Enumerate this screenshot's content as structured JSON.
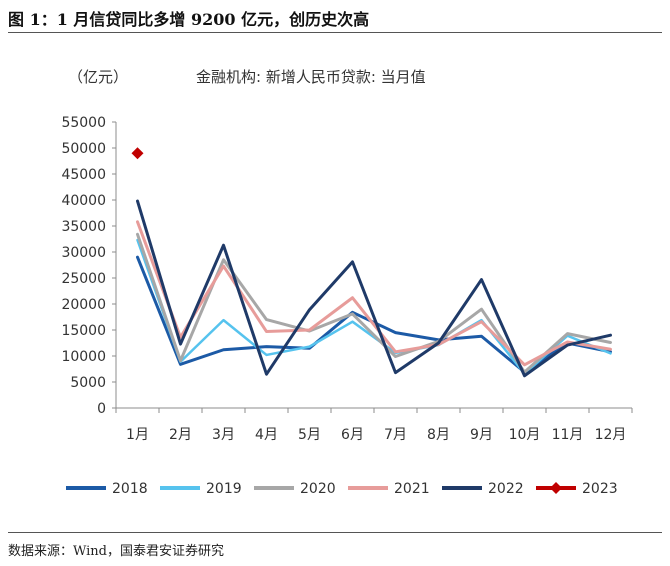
{
  "figure_title": "图 1：1 月信贷同比多增 9200 亿元，创历史次高",
  "source": "数据来源：Wind，国泰君安证券研究",
  "chart_data": {
    "type": "line",
    "unit_label": "（亿元）",
    "subtitle": "金融机构: 新增人民币贷款: 当月值",
    "categories": [
      "1月",
      "2月",
      "3月",
      "4月",
      "5月",
      "6月",
      "7月",
      "8月",
      "9月",
      "10月",
      "11月",
      "12月"
    ],
    "ylim": [
      0,
      55000
    ],
    "yticks": [
      0,
      5000,
      10000,
      15000,
      20000,
      25000,
      30000,
      35000,
      40000,
      45000,
      50000,
      55000
    ],
    "grid": false,
    "legend_position": "bottom",
    "series": [
      {
        "name": "2018",
        "color": "#1c5aa6",
        "width": 3,
        "marker": "none",
        "values": [
          29000,
          8400,
          11200,
          11800,
          11500,
          18400,
          14500,
          13100,
          13800,
          6900,
          12500,
          10800
        ]
      },
      {
        "name": "2019",
        "color": "#56c3ee",
        "width": 2.5,
        "marker": "none",
        "values": [
          32300,
          8900,
          16900,
          10200,
          11800,
          16600,
          10600,
          12100,
          16900,
          6600,
          13900,
          10500
        ]
      },
      {
        "name": "2020",
        "color": "#a7a7a7",
        "width": 3,
        "marker": "none",
        "values": [
          33400,
          9100,
          28500,
          17000,
          14800,
          18100,
          9900,
          12800,
          19000,
          6900,
          14300,
          12600
        ]
      },
      {
        "name": "2021",
        "color": "#e79c9a",
        "width": 3,
        "marker": "none",
        "values": [
          35800,
          13600,
          27300,
          14700,
          15000,
          21200,
          10800,
          12200,
          16600,
          8300,
          12700,
          11300
        ]
      },
      {
        "name": "2022",
        "color": "#1f3a68",
        "width": 3,
        "marker": "none",
        "values": [
          39800,
          12300,
          31300,
          6500,
          18900,
          28100,
          6800,
          12500,
          24700,
          6200,
          12100,
          14000
        ]
      },
      {
        "name": "2023",
        "color": "#c00000",
        "width": 3,
        "marker": "diamond",
        "values": [
          49000,
          null,
          null,
          null,
          null,
          null,
          null,
          null,
          null,
          null,
          null,
          null
        ]
      }
    ]
  }
}
